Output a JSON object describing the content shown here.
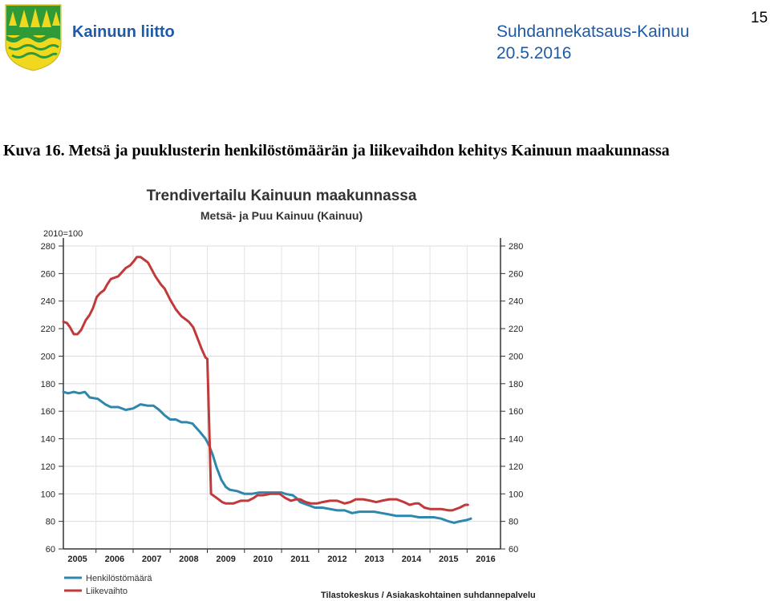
{
  "header": {
    "org_name": "Kainuun liitto",
    "report_title": "Suhdannekatsaus-Kainuu",
    "report_date": "20.5.2016",
    "page_number": "15",
    "logo_icon": "coat-of-arms-icon"
  },
  "figure": {
    "caption": "Kuva 16. Metsä ja puuklusterin henkilöstömäärän ja liikevaihdon kehitys Kainuun maakunnassa"
  },
  "chart_data": {
    "type": "line",
    "title": "Trendivertailu Kainuun maakunnassa",
    "subtitle": "Metsä- ja Puu Kainuu (Kainuu)",
    "index_label": "2010=100",
    "source": "Tilastokeskus / Asiakaskohtainen suhdannepalvelu",
    "ylim": [
      60,
      280
    ],
    "y_ticks": [
      60,
      80,
      100,
      120,
      140,
      160,
      180,
      200,
      220,
      240,
      260,
      280
    ],
    "xlim": [
      2004.62,
      2016.4
    ],
    "x_ticks": [
      "2005",
      "2006",
      "2007",
      "2008",
      "2009",
      "2010",
      "2011",
      "2012",
      "2013",
      "2014",
      "2015",
      "2016"
    ],
    "grid": true,
    "legend_position": "bottom-left",
    "series": [
      {
        "name": "Henkilöstömäärä",
        "color": "#2f87ad",
        "points": [
          [
            2004.62,
            174
          ],
          [
            2004.75,
            173
          ],
          [
            2004.9,
            174
          ],
          [
            2005.05,
            173
          ],
          [
            2005.2,
            174
          ],
          [
            2005.33,
            170
          ],
          [
            2005.55,
            169
          ],
          [
            2005.75,
            165
          ],
          [
            2005.9,
            163
          ],
          [
            2006.1,
            163
          ],
          [
            2006.3,
            161
          ],
          [
            2006.5,
            162
          ],
          [
            2006.7,
            165
          ],
          [
            2006.9,
            164
          ],
          [
            2007.05,
            164
          ],
          [
            2007.2,
            161
          ],
          [
            2007.35,
            157
          ],
          [
            2007.5,
            154
          ],
          [
            2007.65,
            154
          ],
          [
            2007.8,
            152
          ],
          [
            2007.95,
            152
          ],
          [
            2008.1,
            151
          ],
          [
            2008.3,
            145
          ],
          [
            2008.45,
            140
          ],
          [
            2008.55,
            135
          ],
          [
            2008.65,
            128
          ],
          [
            2008.75,
            119
          ],
          [
            2008.88,
            110
          ],
          [
            2009.0,
            105
          ],
          [
            2009.1,
            103
          ],
          [
            2009.3,
            102
          ],
          [
            2009.5,
            100
          ],
          [
            2009.7,
            100
          ],
          [
            2009.9,
            101
          ],
          [
            2010.1,
            101
          ],
          [
            2010.3,
            101
          ],
          [
            2010.5,
            101
          ],
          [
            2010.6,
            100
          ],
          [
            2010.8,
            99
          ],
          [
            2010.9,
            97
          ],
          [
            2011.0,
            94
          ],
          [
            2011.2,
            92
          ],
          [
            2011.4,
            90
          ],
          [
            2011.6,
            90
          ],
          [
            2011.8,
            89
          ],
          [
            2012.0,
            88
          ],
          [
            2012.2,
            88
          ],
          [
            2012.4,
            86
          ],
          [
            2012.6,
            87
          ],
          [
            2012.8,
            87
          ],
          [
            2013.0,
            87
          ],
          [
            2013.2,
            86
          ],
          [
            2013.4,
            85
          ],
          [
            2013.6,
            84
          ],
          [
            2013.8,
            84
          ],
          [
            2014.0,
            84
          ],
          [
            2014.2,
            83
          ],
          [
            2014.4,
            83
          ],
          [
            2014.6,
            83
          ],
          [
            2014.8,
            82
          ],
          [
            2015.0,
            80
          ],
          [
            2015.15,
            79
          ],
          [
            2015.3,
            80
          ],
          [
            2015.5,
            81
          ],
          [
            2015.6,
            82
          ]
        ]
      },
      {
        "name": "Liikevaihto",
        "color": "#c1393a",
        "points": [
          [
            2004.62,
            225
          ],
          [
            2004.72,
            224
          ],
          [
            2004.8,
            221
          ],
          [
            2004.9,
            216
          ],
          [
            2005.0,
            216
          ],
          [
            2005.1,
            219
          ],
          [
            2005.22,
            226
          ],
          [
            2005.33,
            230
          ],
          [
            2005.42,
            235
          ],
          [
            2005.52,
            243
          ],
          [
            2005.62,
            246
          ],
          [
            2005.72,
            248
          ],
          [
            2005.8,
            252
          ],
          [
            2005.9,
            256
          ],
          [
            2006.0,
            257
          ],
          [
            2006.1,
            258
          ],
          [
            2006.2,
            261
          ],
          [
            2006.3,
            264
          ],
          [
            2006.42,
            266
          ],
          [
            2006.52,
            269
          ],
          [
            2006.6,
            272
          ],
          [
            2006.7,
            272
          ],
          [
            2006.8,
            270
          ],
          [
            2006.9,
            268
          ],
          [
            2007.0,
            263
          ],
          [
            2007.1,
            258
          ],
          [
            2007.25,
            252
          ],
          [
            2007.35,
            249
          ],
          [
            2007.5,
            241
          ],
          [
            2007.65,
            234
          ],
          [
            2007.8,
            229
          ],
          [
            2008.0,
            225
          ],
          [
            2008.12,
            221
          ],
          [
            2008.22,
            214
          ],
          [
            2008.35,
            205
          ],
          [
            2008.45,
            199
          ],
          [
            2008.5,
            198
          ],
          [
            2008.55,
            150
          ],
          [
            2008.6,
            100
          ],
          [
            2008.7,
            98
          ],
          [
            2008.8,
            96
          ],
          [
            2008.9,
            94
          ],
          [
            2009.0,
            93
          ],
          [
            2009.2,
            93
          ],
          [
            2009.4,
            95
          ],
          [
            2009.5,
            95
          ],
          [
            2009.6,
            95
          ],
          [
            2009.75,
            97
          ],
          [
            2009.85,
            99
          ],
          [
            2010.0,
            99
          ],
          [
            2010.2,
            100
          ],
          [
            2010.35,
            100
          ],
          [
            2010.45,
            100
          ],
          [
            2010.6,
            97
          ],
          [
            2010.75,
            95
          ],
          [
            2010.9,
            96
          ],
          [
            2011.0,
            96
          ],
          [
            2011.15,
            94
          ],
          [
            2011.3,
            93
          ],
          [
            2011.45,
            93
          ],
          [
            2011.6,
            94
          ],
          [
            2011.8,
            95
          ],
          [
            2012.0,
            95
          ],
          [
            2012.2,
            93
          ],
          [
            2012.35,
            94
          ],
          [
            2012.5,
            96
          ],
          [
            2012.7,
            96
          ],
          [
            2012.9,
            95
          ],
          [
            2013.05,
            94
          ],
          [
            2013.2,
            95
          ],
          [
            2013.4,
            96
          ],
          [
            2013.6,
            96
          ],
          [
            2013.8,
            94
          ],
          [
            2013.95,
            92
          ],
          [
            2014.1,
            93
          ],
          [
            2014.2,
            93
          ],
          [
            2014.35,
            90
          ],
          [
            2014.5,
            89
          ],
          [
            2014.6,
            89
          ],
          [
            2014.8,
            89
          ],
          [
            2015.0,
            88
          ],
          [
            2015.1,
            88
          ],
          [
            2015.3,
            90
          ],
          [
            2015.45,
            92
          ],
          [
            2015.52,
            92
          ]
        ]
      }
    ]
  }
}
